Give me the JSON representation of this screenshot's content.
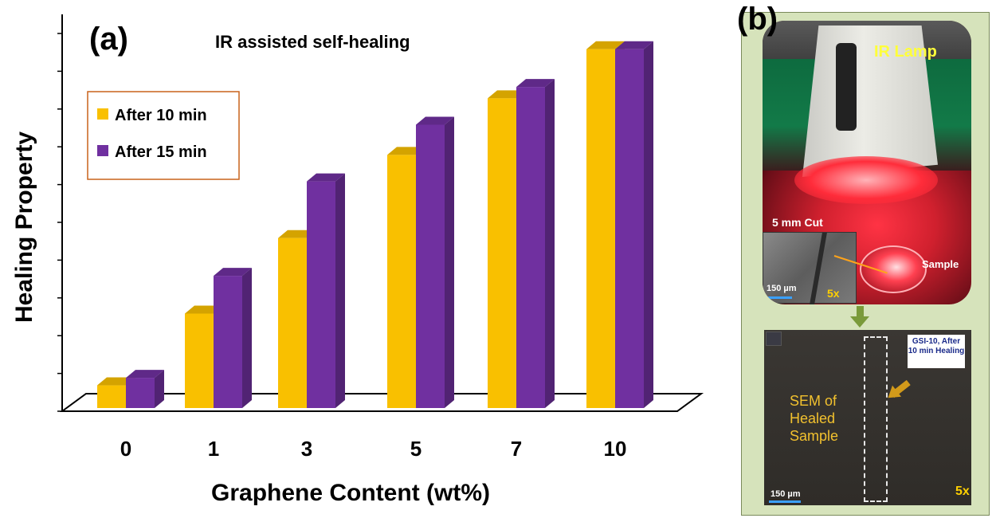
{
  "chart_data": {
    "type": "bar",
    "panel_label": "(a)",
    "title": "IR assisted self-healing",
    "xlabel": "Graphene Content (wt%)",
    "ylabel": "Healing Property",
    "categories": [
      "0",
      "1",
      "3",
      "5",
      "7",
      "10"
    ],
    "series": [
      {
        "name": "After 10 min",
        "color": "#f9c000",
        "values": [
          0.6,
          2.5,
          4.5,
          6.7,
          8.2,
          9.5
        ]
      },
      {
        "name": "After 15 min",
        "color": "#7030a0",
        "values": [
          0.8,
          3.5,
          6.0,
          7.5,
          8.5,
          9.5
        ]
      }
    ],
    "ylim": [
      0,
      10
    ],
    "legend_position": "top-left"
  },
  "panel_b": {
    "panel_label": "(b)",
    "photo": {
      "lamp_label": "IR Lamp",
      "cut_label": "5 mm Cut",
      "sample_label": "Sample",
      "inset_scale": "150 µm",
      "inset_mag": "5x"
    },
    "sem": {
      "label": "SEM of Healed Sample",
      "callout": "GSI-10, After 10 min Healing",
      "scale": "150 µm",
      "mag": "5x"
    }
  }
}
